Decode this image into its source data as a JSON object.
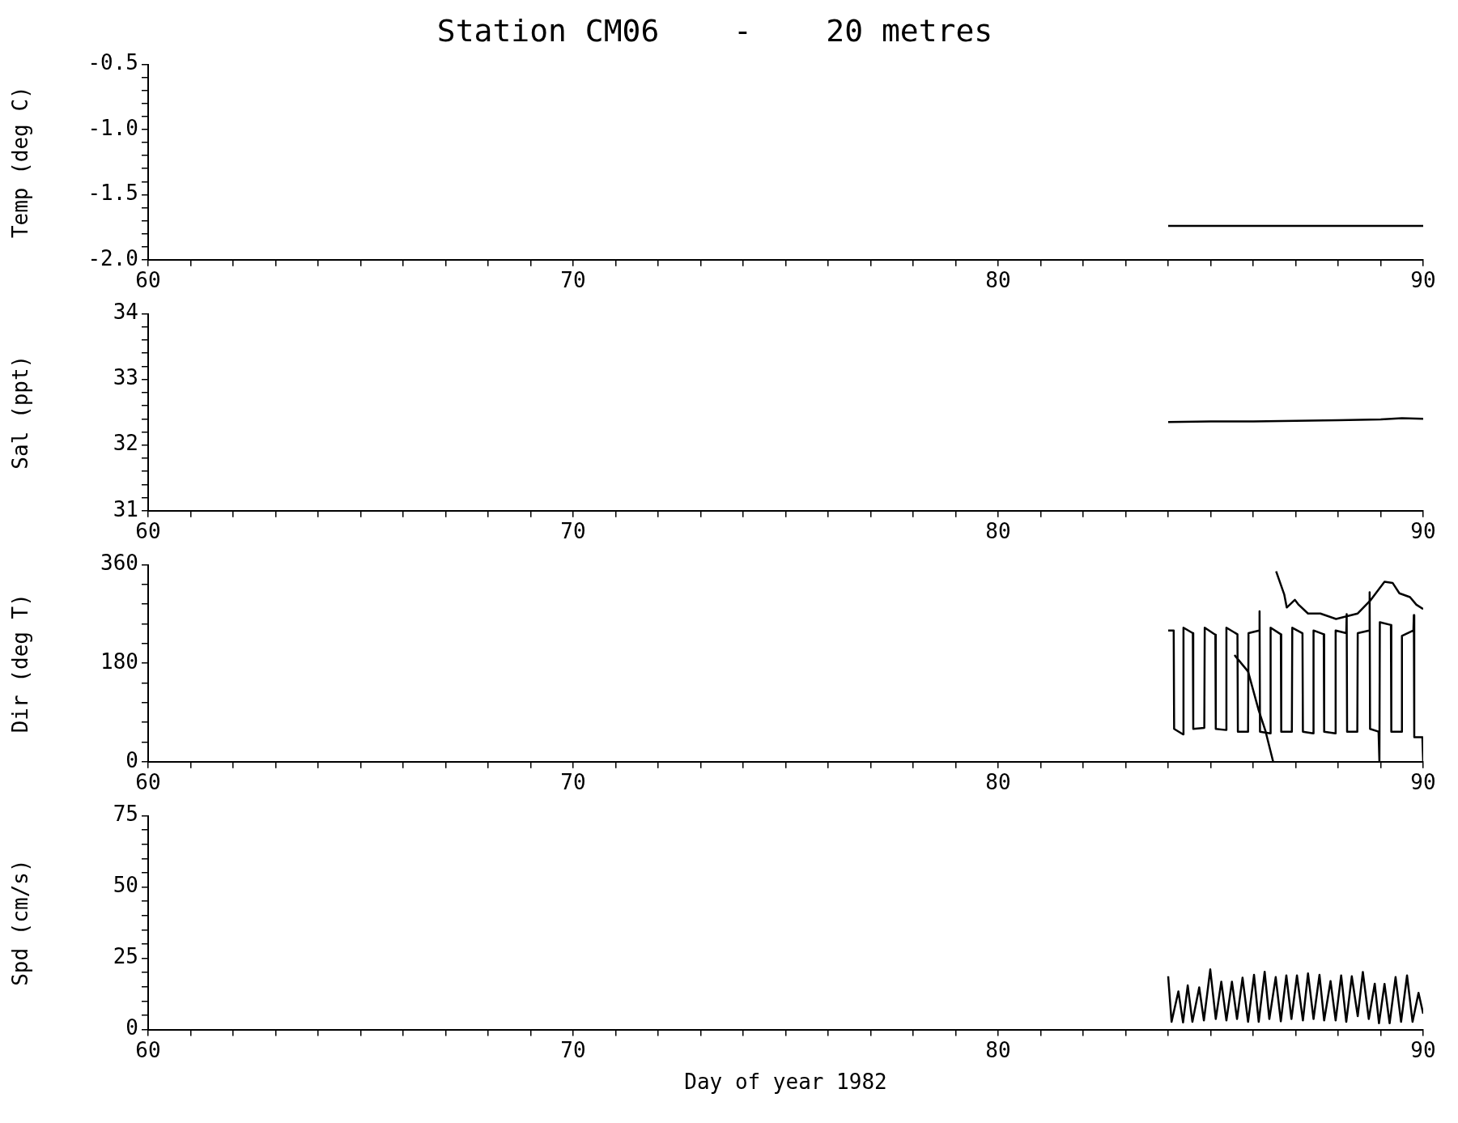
{
  "chart_data": [
    {
      "type": "line",
      "title": "Station CM06    -    20 metres",
      "ylabel": "Temp (deg C)",
      "xlim": [
        60,
        90
      ],
      "xticks": [
        60,
        {
          "value": 61,
          "label": null
        },
        {
          "value": 62,
          "label": null
        },
        {
          "value": 63,
          "label": null
        },
        {
          "value": 64,
          "label": null
        },
        {
          "value": 65,
          "label": null
        },
        {
          "value": 66,
          "label": null
        },
        {
          "value": 67,
          "label": null
        },
        {
          "value": 68,
          "label": null
        },
        {
          "value": 69,
          "label": null
        },
        70,
        {
          "value": 71,
          "label": null
        },
        {
          "value": 72,
          "label": null
        },
        {
          "value": 73,
          "label": null
        },
        {
          "value": 74,
          "label": null
        },
        {
          "value": 75,
          "label": null
        },
        {
          "value": 76,
          "label": null
        },
        {
          "value": 77,
          "label": null
        },
        {
          "value": 78,
          "label": null
        },
        {
          "value": 79,
          "label": null
        },
        80,
        {
          "value": 81,
          "label": null
        },
        {
          "value": 82,
          "label": null
        },
        {
          "value": 83,
          "label": null
        },
        {
          "value": 84,
          "label": null
        },
        {
          "value": 85,
          "label": null
        },
        {
          "value": 86,
          "label": null
        },
        {
          "value": 87,
          "label": null
        },
        {
          "value": 88,
          "label": null
        },
        {
          "value": 89,
          "label": null
        },
        90
      ],
      "ylim": [
        -2.0,
        -0.5
      ],
      "yticks": [
        {
          "value": -2.0,
          "label": "-2.0"
        },
        {
          "value": -1.9,
          "label": null
        },
        {
          "value": -1.8,
          "label": null
        },
        {
          "value": -1.7,
          "label": null
        },
        {
          "value": -1.6,
          "label": null
        },
        -1.5,
        {
          "value": -1.4,
          "label": null
        },
        {
          "value": -1.3,
          "label": null
        },
        {
          "value": -1.2,
          "label": null
        },
        {
          "value": -1.1,
          "label": null
        },
        {
          "value": -1.0,
          "label": "-1.0"
        },
        {
          "value": -0.9,
          "label": null
        },
        {
          "value": -0.8,
          "label": null
        },
        {
          "value": -0.7,
          "label": null
        },
        {
          "value": -0.6,
          "label": null
        },
        -0.5
      ],
      "grid": false,
      "marker": "none",
      "series": [
        {
          "color": "#000000",
          "x": [
            84,
            85,
            86,
            87,
            88,
            89,
            90
          ],
          "values": [
            -1.74,
            -1.74,
            -1.74,
            -1.74,
            -1.74,
            -1.74,
            -1.74
          ]
        }
      ]
    },
    {
      "type": "line",
      "ylabel": "Sal (ppt)",
      "xlim": [
        60,
        90
      ],
      "xticks": [
        60,
        {
          "value": 61,
          "label": null
        },
        {
          "value": 62,
          "label": null
        },
        {
          "value": 63,
          "label": null
        },
        {
          "value": 64,
          "label": null
        },
        {
          "value": 65,
          "label": null
        },
        {
          "value": 66,
          "label": null
        },
        {
          "value": 67,
          "label": null
        },
        {
          "value": 68,
          "label": null
        },
        {
          "value": 69,
          "label": null
        },
        70,
        {
          "value": 71,
          "label": null
        },
        {
          "value": 72,
          "label": null
        },
        {
          "value": 73,
          "label": null
        },
        {
          "value": 74,
          "label": null
        },
        {
          "value": 75,
          "label": null
        },
        {
          "value": 76,
          "label": null
        },
        {
          "value": 77,
          "label": null
        },
        {
          "value": 78,
          "label": null
        },
        {
          "value": 79,
          "label": null
        },
        80,
        {
          "value": 81,
          "label": null
        },
        {
          "value": 82,
          "label": null
        },
        {
          "value": 83,
          "label": null
        },
        {
          "value": 84,
          "label": null
        },
        {
          "value": 85,
          "label": null
        },
        {
          "value": 86,
          "label": null
        },
        {
          "value": 87,
          "label": null
        },
        {
          "value": 88,
          "label": null
        },
        {
          "value": 89,
          "label": null
        },
        90
      ],
      "ylim": [
        31,
        34
      ],
      "yticks": [
        31,
        {
          "value": 31.2,
          "label": null
        },
        {
          "value": 31.4,
          "label": null
        },
        {
          "value": 31.6,
          "label": null
        },
        {
          "value": 31.8,
          "label": null
        },
        32,
        {
          "value": 32.2,
          "label": null
        },
        {
          "value": 32.4,
          "label": null
        },
        {
          "value": 32.6,
          "label": null
        },
        {
          "value": 32.8,
          "label": null
        },
        33,
        {
          "value": 33.2,
          "label": null
        },
        {
          "value": 33.4,
          "label": null
        },
        {
          "value": 33.6,
          "label": null
        },
        {
          "value": 33.8,
          "label": null
        },
        34
      ],
      "grid": false,
      "marker": "none",
      "series": [
        {
          "color": "#000000",
          "x": [
            84,
            85,
            86,
            87,
            88,
            89,
            89.5,
            90
          ],
          "values": [
            32.35,
            32.36,
            32.36,
            32.37,
            32.38,
            32.39,
            32.41,
            32.4
          ]
        }
      ]
    },
    {
      "type": "line",
      "ylabel": "Dir (deg T)",
      "xlim": [
        60,
        90
      ],
      "xticks": [
        60,
        {
          "value": 61,
          "label": null
        },
        {
          "value": 62,
          "label": null
        },
        {
          "value": 63,
          "label": null
        },
        {
          "value": 64,
          "label": null
        },
        {
          "value": 65,
          "label": null
        },
        {
          "value": 66,
          "label": null
        },
        {
          "value": 67,
          "label": null
        },
        {
          "value": 68,
          "label": null
        },
        {
          "value": 69,
          "label": null
        },
        70,
        {
          "value": 71,
          "label": null
        },
        {
          "value": 72,
          "label": null
        },
        {
          "value": 73,
          "label": null
        },
        {
          "value": 74,
          "label": null
        },
        {
          "value": 75,
          "label": null
        },
        {
          "value": 76,
          "label": null
        },
        {
          "value": 77,
          "label": null
        },
        {
          "value": 78,
          "label": null
        },
        {
          "value": 79,
          "label": null
        },
        80,
        {
          "value": 81,
          "label": null
        },
        {
          "value": 82,
          "label": null
        },
        {
          "value": 83,
          "label": null
        },
        {
          "value": 84,
          "label": null
        },
        {
          "value": 85,
          "label": null
        },
        {
          "value": 86,
          "label": null
        },
        {
          "value": 87,
          "label": null
        },
        {
          "value": 88,
          "label": null
        },
        {
          "value": 89,
          "label": null
        },
        90
      ],
      "ylim": [
        0,
        360
      ],
      "yticks": [
        0,
        {
          "value": 36,
          "label": null
        },
        {
          "value": 72,
          "label": null
        },
        {
          "value": 108,
          "label": null
        },
        {
          "value": 144,
          "label": null
        },
        180,
        {
          "value": 216,
          "label": null
        },
        {
          "value": 252,
          "label": null
        },
        {
          "value": 288,
          "label": null
        },
        {
          "value": 324,
          "label": null
        },
        360
      ],
      "grid": false,
      "marker": "none",
      "series": [
        {
          "color": "#000000",
          "x": [
            84.0,
            84.13,
            84.14,
            84.35,
            84.36,
            84.58,
            84.59,
            84.85,
            84.86,
            85.11,
            85.12,
            85.36,
            85.37,
            85.63,
            85.64,
            85.88,
            85.89,
            86.14,
            86.15,
            86.16,
            86.4,
            86.41,
            86.65,
            86.66,
            86.91,
            86.92,
            87.16,
            87.17,
            87.41,
            87.42,
            87.66,
            87.67,
            87.93,
            87.94,
            88.19,
            88.2,
            88.21,
            88.45,
            88.46,
            88.73,
            88.74,
            88.75,
            88.95,
            88.97,
            88.98,
            89.24,
            89.25,
            89.49,
            89.5,
            89.77,
            89.78,
            89.79,
            89.98,
            90.0
          ],
          "values": [
            240,
            240,
            60,
            50,
            245,
            235,
            60,
            62,
            245,
            232,
            60,
            58,
            245,
            233,
            55,
            55,
            235,
            240,
            275,
            55,
            52,
            245,
            233,
            55,
            55,
            245,
            235,
            55,
            52,
            240,
            233,
            55,
            52,
            240,
            235,
            270,
            55,
            55,
            235,
            240,
            310,
            60,
            55,
            0,
            255,
            250,
            55,
            55,
            230,
            240,
            268,
            45,
            45,
            0
          ]
        },
        {
          "color": "#000000",
          "x": [
            85.56,
            85.88,
            86.13,
            86.29,
            86.47
          ],
          "values": [
            195,
            165,
            94,
            56,
            0
          ]
        },
        {
          "color": "#000000",
          "x": [
            86.54,
            86.73,
            86.79,
            86.98,
            87.07,
            87.29,
            87.58,
            87.95,
            88.46,
            88.77,
            89.09,
            89.28,
            89.44,
            89.69,
            89.84,
            90.0
          ],
          "values": [
            348,
            306,
            282,
            296,
            287,
            271,
            271,
            261,
            271,
            296,
            329,
            327,
            308,
            301,
            287,
            279
          ]
        }
      ]
    },
    {
      "type": "line",
      "ylabel": "Spd (cm/s)",
      "xlabel": "Day of year 1982",
      "xlim": [
        60,
        90
      ],
      "xticks": [
        60,
        {
          "value": 61,
          "label": null
        },
        {
          "value": 62,
          "label": null
        },
        {
          "value": 63,
          "label": null
        },
        {
          "value": 64,
          "label": null
        },
        {
          "value": 65,
          "label": null
        },
        {
          "value": 66,
          "label": null
        },
        {
          "value": 67,
          "label": null
        },
        {
          "value": 68,
          "label": null
        },
        {
          "value": 69,
          "label": null
        },
        70,
        {
          "value": 71,
          "label": null
        },
        {
          "value": 72,
          "label": null
        },
        {
          "value": 73,
          "label": null
        },
        {
          "value": 74,
          "label": null
        },
        {
          "value": 75,
          "label": null
        },
        {
          "value": 76,
          "label": null
        },
        {
          "value": 77,
          "label": null
        },
        {
          "value": 78,
          "label": null
        },
        {
          "value": 79,
          "label": null
        },
        80,
        {
          "value": 81,
          "label": null
        },
        {
          "value": 82,
          "label": null
        },
        {
          "value": 83,
          "label": null
        },
        {
          "value": 84,
          "label": null
        },
        {
          "value": 85,
          "label": null
        },
        {
          "value": 86,
          "label": null
        },
        {
          "value": 87,
          "label": null
        },
        {
          "value": 88,
          "label": null
        },
        {
          "value": 89,
          "label": null
        },
        90
      ],
      "ylim": [
        0,
        75
      ],
      "yticks": [
        0,
        {
          "value": 5,
          "label": null
        },
        {
          "value": 10,
          "label": null
        },
        {
          "value": 15,
          "label": null
        },
        {
          "value": 20,
          "label": null
        },
        25,
        {
          "value": 30,
          "label": null
        },
        {
          "value": 35,
          "label": null
        },
        {
          "value": 40,
          "label": null
        },
        {
          "value": 45,
          "label": null
        },
        50,
        {
          "value": 55,
          "label": null
        },
        {
          "value": 60,
          "label": null
        },
        {
          "value": 65,
          "label": null
        },
        {
          "value": 70,
          "label": null
        },
        75
      ],
      "grid": false,
      "marker": "none",
      "series": [
        {
          "color": "#000000",
          "x": [
            84.0,
            84.08,
            84.24,
            84.35,
            84.46,
            84.57,
            84.73,
            84.84,
            84.99,
            85.12,
            85.25,
            85.37,
            85.5,
            85.62,
            85.75,
            85.88,
            86.02,
            86.13,
            86.27,
            86.38,
            86.53,
            86.65,
            86.78,
            86.9,
            87.03,
            87.17,
            87.29,
            87.42,
            87.56,
            87.67,
            87.82,
            87.94,
            88.07,
            88.19,
            88.32,
            88.46,
            88.58,
            88.72,
            88.86,
            88.96,
            89.09,
            89.21,
            89.35,
            89.48,
            89.62,
            89.75,
            89.89,
            90.0
          ],
          "values": [
            18.7,
            2.7,
            13.4,
            2.5,
            15.5,
            2.7,
            14.8,
            3.2,
            21.1,
            3.7,
            16.8,
            3.2,
            16.8,
            3.7,
            18.2,
            2.7,
            19.2,
            2.7,
            20.3,
            3.7,
            18.4,
            2.9,
            19.0,
            3.7,
            19.0,
            3.2,
            19.7,
            3.7,
            19.2,
            3.2,
            17.0,
            3.2,
            19.0,
            2.7,
            18.7,
            4.7,
            20.2,
            3.7,
            16.1,
            2.2,
            16.0,
            2.2,
            18.4,
            2.7,
            19.0,
            2.7,
            12.9,
            5.6
          ]
        }
      ]
    }
  ]
}
